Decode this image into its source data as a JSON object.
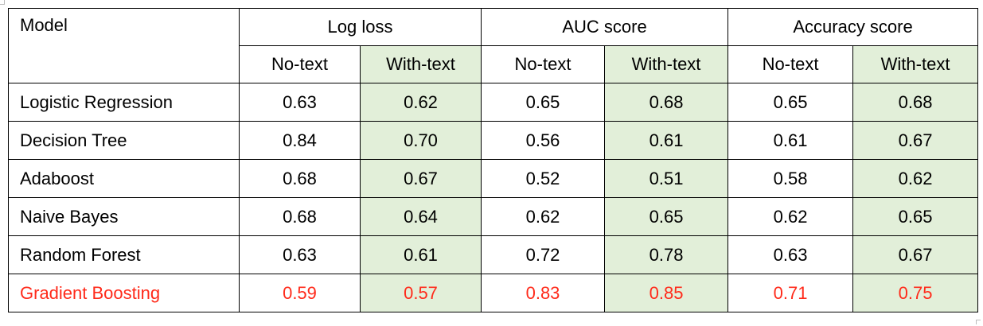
{
  "table": {
    "model_header": "Model",
    "groups": [
      "Log loss",
      "AUC score",
      "Accuracy score"
    ],
    "subheaders": [
      "No-text",
      "With-text"
    ],
    "rows": [
      {
        "model": "Logistic Regression",
        "values": [
          "0.63",
          "0.62",
          "0.65",
          "0.68",
          "0.65",
          "0.68"
        ]
      },
      {
        "model": "Decision Tree",
        "values": [
          "0.84",
          "0.70",
          "0.56",
          "0.61",
          "0.61",
          "0.67"
        ]
      },
      {
        "model": "Adaboost",
        "values": [
          "0.68",
          "0.67",
          "0.52",
          "0.51",
          "0.58",
          "0.62"
        ]
      },
      {
        "model": "Naive Bayes",
        "values": [
          "0.68",
          "0.64",
          "0.62",
          "0.65",
          "0.62",
          "0.65"
        ]
      },
      {
        "model": "Random Forest",
        "values": [
          "0.63",
          "0.61",
          "0.72",
          "0.78",
          "0.63",
          "0.67"
        ]
      },
      {
        "model": "Gradient Boosting",
        "values": [
          "0.59",
          "0.57",
          "0.83",
          "0.85",
          "0.71",
          "0.75"
        ]
      }
    ],
    "highlight_row": "Gradient Boosting",
    "colors": {
      "shaded_cell": "#e2efd9",
      "highlight_text": "#ff2a1a",
      "border": "#000000"
    }
  }
}
